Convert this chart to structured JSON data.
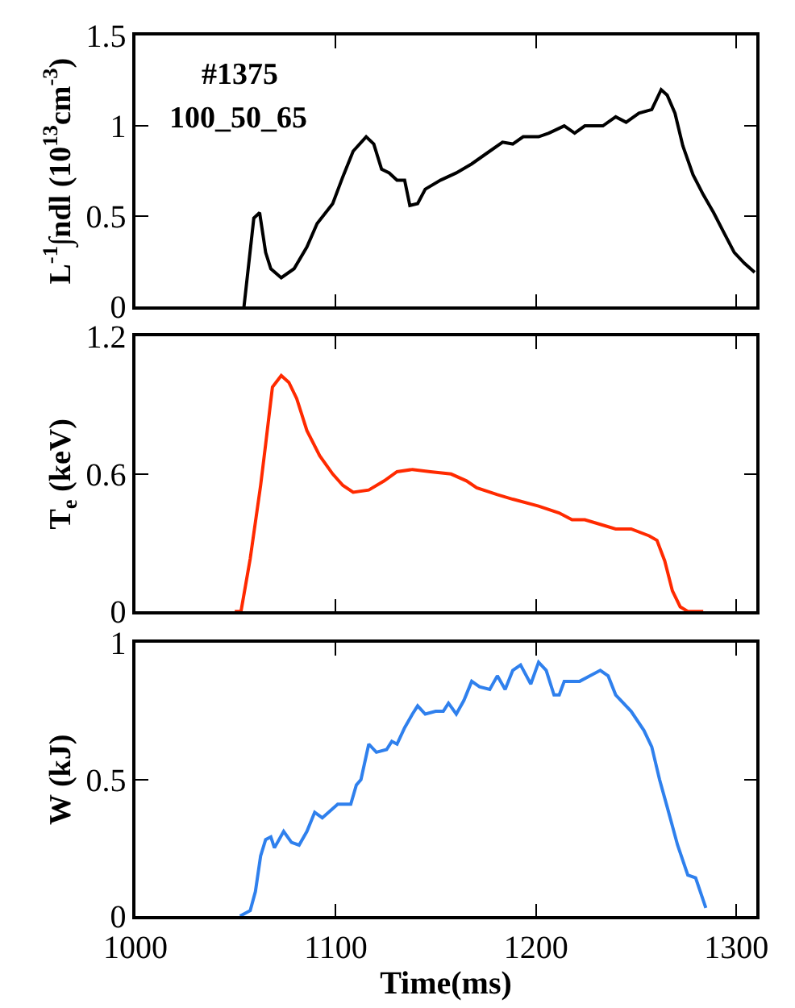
{
  "chart_data": [
    {
      "type": "line",
      "ylabel": "L$^{-1}$∫ndl (10$^{13}$cm$^{-3}$)",
      "annotations": [
        "#1375",
        "100_50_65"
      ],
      "tick_labels": "y",
      "xlim": [
        1000,
        1310
      ],
      "xticks": [
        1000,
        1100,
        1200,
        1300
      ],
      "ylim": [
        0,
        1.5
      ],
      "yticks": [
        0,
        0.5,
        1,
        1.5
      ],
      "series": [
        {
          "color": "#000000",
          "x": [
            1054.2,
            1059.1,
            1062,
            1065,
            1067.6,
            1072.8,
            1079.2,
            1085.6,
            1090.7,
            1098.5,
            1103.6,
            1108.7,
            1115.2,
            1119,
            1122.9,
            1126.7,
            1130.6,
            1134.4,
            1137,
            1140.9,
            1144.7,
            1152.4,
            1160.2,
            1167.9,
            1175.6,
            1183.3,
            1188.4,
            1193.6,
            1201.3,
            1206.4,
            1214.1,
            1219.3,
            1224.4,
            1233.4,
            1239.8,
            1245,
            1251.4,
            1257.8,
            1262.5,
            1265.5,
            1269.4,
            1273.3,
            1278.4,
            1283.5,
            1288.7,
            1293.8,
            1299,
            1304.1,
            1309.2
          ],
          "values": [
            0,
            0.49,
            0.52,
            0.3,
            0.21,
            0.16,
            0.21,
            0.33,
            0.46,
            0.57,
            0.72,
            0.86,
            0.94,
            0.9,
            0.76,
            0.74,
            0.7,
            0.7,
            0.56,
            0.57,
            0.65,
            0.7,
            0.74,
            0.79,
            0.85,
            0.91,
            0.9,
            0.94,
            0.94,
            0.96,
            1.0,
            0.96,
            1.0,
            1.0,
            1.05,
            1.02,
            1.07,
            1.09,
            1.2,
            1.17,
            1.07,
            0.89,
            0.73,
            0.62,
            0.52,
            0.41,
            0.3,
            0.24,
            0.19
          ]
        }
      ]
    },
    {
      "type": "line",
      "ylabel": "T$_{e}$ (keV)",
      "tick_labels": "y",
      "xlim": [
        1000,
        1310
      ],
      "xticks": [
        1000,
        1100,
        1200,
        1300
      ],
      "ylim": [
        0,
        1.2
      ],
      "yticks": [
        0,
        0.6,
        1.2
      ],
      "series": [
        {
          "color": "#ff2a00",
          "x": [
            1049.6,
            1052.7,
            1057.3,
            1062.5,
            1065,
            1068.4,
            1072.8,
            1076.6,
            1080.5,
            1085.6,
            1092,
            1098.5,
            1103.6,
            1108.7,
            1116.5,
            1124.2,
            1130.6,
            1138.3,
            1147.3,
            1157.6,
            1165.3,
            1170.4,
            1180.7,
            1188.4,
            1201.3,
            1211.5,
            1218,
            1224.4,
            1232.1,
            1239.8,
            1247.5,
            1256.5,
            1260.4,
            1264.3,
            1268.1,
            1272,
            1275.8,
            1283.5
          ],
          "values": [
            0,
            0,
            0.23,
            0.55,
            0.73,
            0.98,
            1.03,
            1.0,
            0.93,
            0.79,
            0.68,
            0.6,
            0.55,
            0.52,
            0.53,
            0.57,
            0.61,
            0.62,
            0.61,
            0.6,
            0.57,
            0.54,
            0.51,
            0.49,
            0.46,
            0.43,
            0.4,
            0.4,
            0.38,
            0.36,
            0.36,
            0.33,
            0.31,
            0.22,
            0.09,
            0.02,
            0,
            0
          ]
        }
      ]
    },
    {
      "type": "line",
      "ylabel": "W (kJ)",
      "xlabel": "Time(ms)",
      "xlim": [
        1000,
        1310
      ],
      "xticks": [
        1000,
        1100,
        1200,
        1300
      ],
      "ylim": [
        0,
        1
      ],
      "yticks": [
        0,
        0.5,
        1
      ],
      "series": [
        {
          "color": "#2f80ed",
          "x": [
            1052.2,
            1057.3,
            1059.9,
            1062.5,
            1065,
            1067.6,
            1069.4,
            1074,
            1077.9,
            1081.7,
            1085.6,
            1089.5,
            1093.3,
            1101,
            1107.5,
            1110.3,
            1112.6,
            1116.5,
            1120.3,
            1125.4,
            1128,
            1130.6,
            1134.4,
            1138.3,
            1140.9,
            1144.7,
            1149.9,
            1153.7,
            1156.3,
            1160.2,
            1164,
            1167.9,
            1171.8,
            1176.9,
            1180.7,
            1184.6,
            1188.4,
            1192.3,
            1197.4,
            1201.3,
            1205.1,
            1209,
            1211.6,
            1214.1,
            1221.8,
            1227,
            1232.1,
            1236,
            1239.8,
            1247.5,
            1253.9,
            1257.8,
            1261.7,
            1265.5,
            1270.7,
            1275.8,
            1279.7,
            1284.8
          ],
          "values": [
            0,
            0.02,
            0.09,
            0.22,
            0.28,
            0.29,
            0.25,
            0.31,
            0.27,
            0.26,
            0.31,
            0.38,
            0.36,
            0.41,
            0.41,
            0.48,
            0.5,
            0.63,
            0.6,
            0.61,
            0.64,
            0.63,
            0.69,
            0.74,
            0.77,
            0.74,
            0.75,
            0.75,
            0.78,
            0.74,
            0.79,
            0.86,
            0.84,
            0.83,
            0.88,
            0.83,
            0.9,
            0.92,
            0.85,
            0.93,
            0.9,
            0.81,
            0.81,
            0.86,
            0.86,
            0.88,
            0.9,
            0.88,
            0.81,
            0.75,
            0.68,
            0.62,
            0.5,
            0.4,
            0.26,
            0.15,
            0.14,
            0.03
          ]
        }
      ]
    }
  ]
}
